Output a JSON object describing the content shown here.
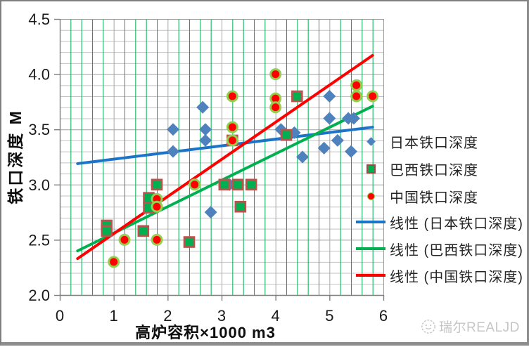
{
  "chart_data": {
    "type": "scatter",
    "title": "",
    "xlabel": "高炉容积×1000 m3",
    "ylabel": "铁口深度 M",
    "x_axis": {
      "min": 0,
      "max": 6,
      "tick_step": 1,
      "tick_labels": [
        "0",
        "1",
        "2",
        "3",
        "4",
        "5",
        "6"
      ],
      "minor_grid_step": 0.2,
      "major_grid_step": 1.0
    },
    "y_axis": {
      "min": 2.0,
      "max": 4.5,
      "tick_step": 0.5,
      "tick_labels": [
        "2.0",
        "2.5",
        "3.0",
        "3.5",
        "4.0",
        "4.5"
      ],
      "minor_grid_step": 0.1,
      "major_grid_step": 0.5
    },
    "grid": {
      "h_minor_color": "#c2c2c2",
      "h_major_color": "#a0a0a0",
      "v_minor_color": "#00B050",
      "v_major_color": "#a6a6a6"
    },
    "series": [
      {
        "name": "日本铁口深度",
        "marker": "diamond",
        "color": "#4F81BD",
        "points": [
          [
            2.1,
            3.5
          ],
          [
            2.1,
            3.3
          ],
          [
            2.65,
            3.7
          ],
          [
            2.7,
            3.5
          ],
          [
            2.7,
            3.4
          ],
          [
            2.8,
            2.75
          ],
          [
            3.15,
            3.0
          ],
          [
            4.1,
            3.5
          ],
          [
            4.35,
            3.47
          ],
          [
            4.5,
            3.25
          ],
          [
            4.9,
            3.33
          ],
          [
            5.0,
            3.8
          ],
          [
            5.0,
            3.6
          ],
          [
            5.15,
            3.4
          ],
          [
            5.35,
            3.6
          ],
          [
            5.45,
            3.6
          ],
          [
            5.4,
            3.3
          ]
        ]
      },
      {
        "name": "巴西铁口深度",
        "marker": "square",
        "color": "#00B050",
        "border_color": "#C0504D",
        "points": [
          [
            0.87,
            2.63
          ],
          [
            0.87,
            2.58
          ],
          [
            1.55,
            2.58
          ],
          [
            1.65,
            2.88
          ],
          [
            1.65,
            2.79
          ],
          [
            1.8,
            3.0
          ],
          [
            2.4,
            2.48
          ],
          [
            3.05,
            3.0
          ],
          [
            3.2,
            3.4
          ],
          [
            3.3,
            3.0
          ],
          [
            3.35,
            2.8
          ],
          [
            3.55,
            3.0
          ],
          [
            4.2,
            3.45
          ],
          [
            4.4,
            3.8
          ]
        ]
      },
      {
        "name": "中国铁口深度",
        "marker": "circle",
        "color": "#FF0000",
        "ring_color": "#92D050",
        "points": [
          [
            1.0,
            2.3
          ],
          [
            1.2,
            2.5
          ],
          [
            1.8,
            2.87
          ],
          [
            1.8,
            2.8
          ],
          [
            1.8,
            2.5
          ],
          [
            2.5,
            3.0
          ],
          [
            3.2,
            3.8
          ],
          [
            3.2,
            3.52
          ],
          [
            3.2,
            3.4
          ],
          [
            4.0,
            4.0
          ],
          [
            4.0,
            3.78
          ],
          [
            4.0,
            3.7
          ],
          [
            5.5,
            3.9
          ],
          [
            5.5,
            3.8
          ],
          [
            5.8,
            3.8
          ]
        ]
      }
    ],
    "trendlines": [
      {
        "name": "线性 (日本铁口深度)",
        "color": "#1B74C8",
        "x1": 0.33,
        "y1": 3.19,
        "x2": 5.8,
        "y2": 3.52
      },
      {
        "name": "线性 (巴西铁口深度)",
        "color": "#00B050",
        "x1": 0.33,
        "y1": 2.4,
        "x2": 5.8,
        "y2": 3.71
      },
      {
        "name": "线性 (中国铁口深度)",
        "color": "#FF0000",
        "x1": 0.33,
        "y1": 2.33,
        "x2": 5.8,
        "y2": 4.17
      }
    ],
    "legend_position": "right"
  },
  "legend": {
    "items": [
      {
        "label": "日本铁口深度",
        "type": "diamond"
      },
      {
        "label": "巴西铁口深度",
        "type": "square"
      },
      {
        "label": "中国铁口深度",
        "type": "circle"
      },
      {
        "label": "线性 (日本铁口深度)",
        "type": "line",
        "color": "#1B74C8"
      },
      {
        "label": "线性 (巴西铁口深度)",
        "type": "line",
        "color": "#00B050"
      },
      {
        "label": "线性 (中国铁口深度)",
        "type": "line",
        "color": "#FF0000"
      }
    ]
  },
  "watermark": {
    "text": "瑞尔REALJD"
  }
}
